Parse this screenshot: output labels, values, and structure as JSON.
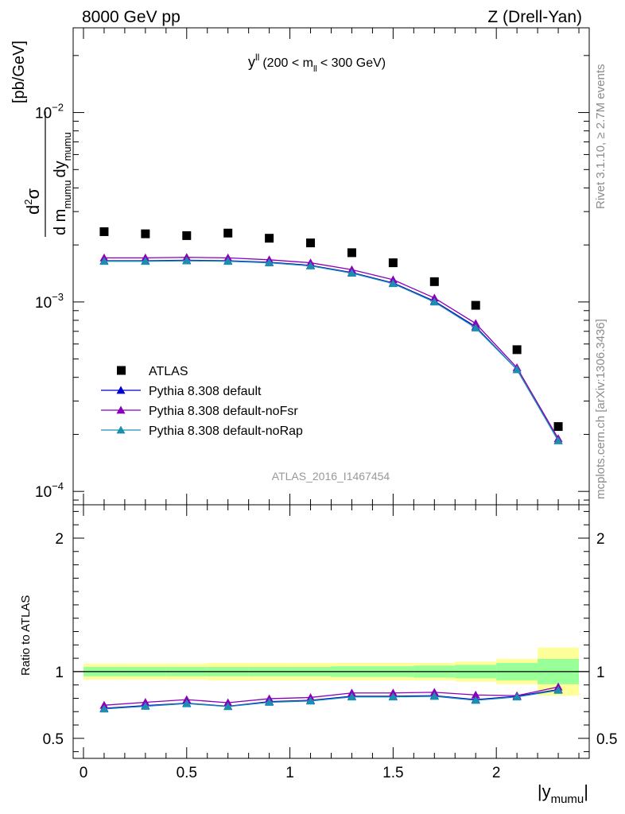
{
  "header": {
    "left": "8000 GeV pp",
    "right": "Z (Drell-Yan)"
  },
  "side_labels": {
    "rivet": "Rivet 3.1.10, ≥ 2.7M events",
    "mcplots": "mcplots.cern.ch [arXiv:1306.3436]"
  },
  "chart_data": [
    {
      "type": "scatter",
      "panel": "main",
      "title": {
        "main": "y",
        "sup": "ll",
        "cut_open": "(200 < m",
        "cut_sub": "ll",
        "cut_close": "< 300 GeV)"
      },
      "watermark": "ATLAS_2016_I1467454",
      "ylabel": {
        "num": "d",
        "num_sup": "2",
        "num_sigma": "σ",
        "den_d": "d m",
        "den_sub1": "mumu",
        "den_dy": "dy",
        "den_sub2": "mumu",
        "unit": "[pb/GeV]"
      },
      "yscale": "log",
      "ylim": [
        8.5e-05,
        0.028
      ],
      "xlim": [
        -0.05,
        2.45
      ],
      "yticks": [
        {
          "value": 0.01,
          "base": "10",
          "exp": "−2"
        },
        {
          "value": 0.001,
          "base": "10",
          "exp": "−3"
        },
        {
          "value": 0.0001,
          "base": "10",
          "exp": "−4"
        }
      ],
      "x": [
        0.1,
        0.3,
        0.5,
        0.7,
        0.9,
        1.1,
        1.3,
        1.5,
        1.7,
        1.9,
        2.1,
        2.3
      ],
      "legend_position": "middle-left",
      "series": [
        {
          "name": "ATLAS",
          "marker": "square",
          "color": "#000000",
          "values": [
            0.00235,
            0.00229,
            0.00224,
            0.00231,
            0.00217,
            0.00205,
            0.00182,
            0.00161,
            0.00128,
            0.00096,
            0.00056,
            0.00022
          ]
        },
        {
          "name": "Pythia 8.308 default",
          "marker": "triangle",
          "color": "#0000cc",
          "values": [
            0.00165,
            0.00165,
            0.00166,
            0.00165,
            0.00162,
            0.00156,
            0.00143,
            0.00126,
            0.00101,
            0.00074,
            0.00044,
            0.000186
          ]
        },
        {
          "name": "Pythia 8.308 default-noFsr",
          "marker": "triangle",
          "color": "#8800bb",
          "values": [
            0.00171,
            0.00171,
            0.00172,
            0.00171,
            0.00167,
            0.00161,
            0.00148,
            0.00131,
            0.00105,
            0.00077,
            0.00045,
            0.00019
          ]
        },
        {
          "name": "Pythia 8.308 default-noRap",
          "marker": "triangle",
          "color": "#1a8fb0",
          "values": [
            0.00164,
            0.00164,
            0.00165,
            0.00164,
            0.00161,
            0.00155,
            0.00142,
            0.00125,
            0.001,
            0.00073,
            0.00044,
            0.000185
          ]
        }
      ]
    },
    {
      "type": "scatter",
      "panel": "ratio",
      "ylabel": "Ratio to ATLAS",
      "xlabel": {
        "main": "|y",
        "sub": "mumu",
        "close": "|"
      },
      "ylim": [
        0.35,
        2.25
      ],
      "xlim": [
        -0.05,
        2.45
      ],
      "yticks": [
        {
          "value": 0.5,
          "label": "0.5"
        },
        {
          "value": 1,
          "label": "1"
        },
        {
          "value": 2,
          "label": "2"
        }
      ],
      "xticks": [
        {
          "value": 0,
          "label": "0"
        },
        {
          "value": 0.5,
          "label": "0.5"
        },
        {
          "value": 1,
          "label": "1"
        },
        {
          "value": 1.5,
          "label": "1.5"
        },
        {
          "value": 2,
          "label": "2"
        }
      ],
      "bands": {
        "edges": [
          0.0,
          0.2,
          0.4,
          0.6,
          0.8,
          1.0,
          1.2,
          1.4,
          1.6,
          1.8,
          2.0,
          2.2,
          2.4
        ],
        "total_colour": "#ffff99",
        "stat_colour": "#99ff99",
        "total_low": [
          0.94,
          0.94,
          0.94,
          0.935,
          0.935,
          0.935,
          0.935,
          0.935,
          0.935,
          0.925,
          0.905,
          0.82
        ],
        "total_high": [
          1.06,
          1.06,
          1.06,
          1.065,
          1.065,
          1.065,
          1.065,
          1.065,
          1.065,
          1.075,
          1.095,
          1.18
        ],
        "stat_low": [
          0.965,
          0.965,
          0.965,
          0.965,
          0.965,
          0.965,
          0.96,
          0.96,
          0.955,
          0.95,
          0.935,
          0.905
        ],
        "stat_high": [
          1.035,
          1.035,
          1.035,
          1.035,
          1.035,
          1.035,
          1.04,
          1.04,
          1.045,
          1.05,
          1.065,
          1.095
        ]
      },
      "x": [
        0.1,
        0.3,
        0.5,
        0.7,
        0.9,
        1.1,
        1.3,
        1.5,
        1.7,
        1.9,
        2.1,
        2.3
      ],
      "series": [
        {
          "name": "Pythia 8.308 default",
          "color": "#0000cc",
          "values": [
            0.725,
            0.745,
            0.763,
            0.74,
            0.775,
            0.785,
            0.815,
            0.815,
            0.82,
            0.79,
            0.815,
            0.865
          ]
        },
        {
          "name": "Pythia 8.308 default-noFsr",
          "color": "#8800bb",
          "values": [
            0.748,
            0.77,
            0.79,
            0.767,
            0.797,
            0.806,
            0.84,
            0.84,
            0.845,
            0.825,
            0.82,
            0.885
          ]
        },
        {
          "name": "Pythia 8.308 default-noRap",
          "color": "#1a8fb0",
          "values": [
            0.72,
            0.74,
            0.76,
            0.738,
            0.77,
            0.78,
            0.81,
            0.81,
            0.815,
            0.785,
            0.81,
            0.86
          ]
        }
      ]
    }
  ]
}
